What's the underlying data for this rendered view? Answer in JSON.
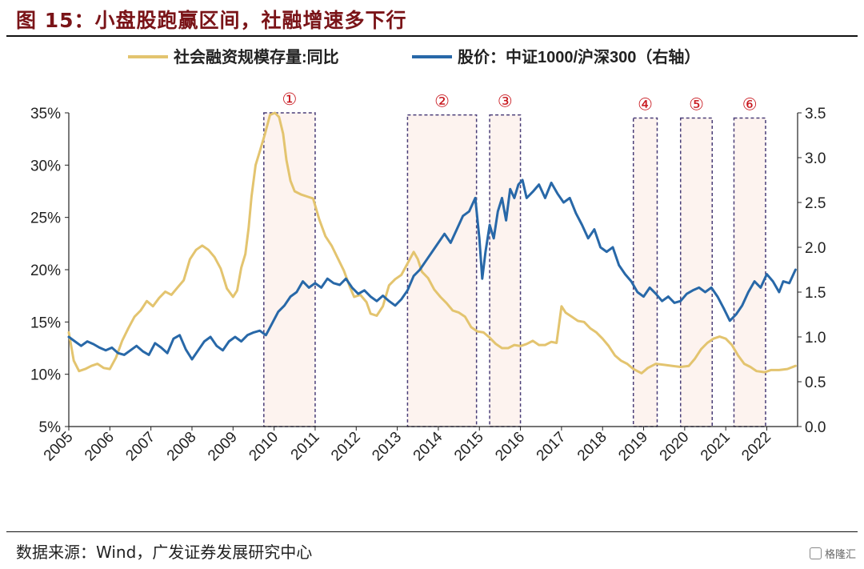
{
  "title": "图  15：小盘股跑赢区间，社融增速多下行",
  "source": "数据来源：Wind，广发证券发展研究中心",
  "logo_text": "格隆汇",
  "chart_data": {
    "type": "line",
    "legend_placement": "top",
    "x_range": [
      2005.0,
      2022.75
    ],
    "x_ticks": [
      2005,
      2006,
      2007,
      2008,
      2009,
      2010,
      2011,
      2012,
      2013,
      2014,
      2015,
      2016,
      2017,
      2018,
      2019,
      2020,
      2021,
      2022
    ],
    "y_left": {
      "range": [
        5,
        35
      ],
      "ticks": [
        "5%",
        "10%",
        "15%",
        "20%",
        "25%",
        "30%",
        "35%"
      ]
    },
    "y_right": {
      "range": [
        0,
        3.5
      ],
      "ticks": [
        "0.0",
        "0.5",
        "1.0",
        "1.5",
        "2.0",
        "2.5",
        "3.0",
        "3.5"
      ]
    },
    "grid": false,
    "series": [
      {
        "name": "社会融资规模存量:同比",
        "axis": "left",
        "color": "#E3C46F",
        "points": [
          [
            2005.0,
            14.0
          ],
          [
            2005.12,
            11.3
          ],
          [
            2005.25,
            10.3
          ],
          [
            2005.4,
            10.5
          ],
          [
            2005.55,
            10.8
          ],
          [
            2005.7,
            11.0
          ],
          [
            2005.85,
            10.6
          ],
          [
            2006.0,
            10.5
          ],
          [
            2006.15,
            11.6
          ],
          [
            2006.3,
            13.2
          ],
          [
            2006.45,
            14.4
          ],
          [
            2006.6,
            15.5
          ],
          [
            2006.75,
            16.1
          ],
          [
            2006.9,
            17.0
          ],
          [
            2007.05,
            16.5
          ],
          [
            2007.2,
            17.3
          ],
          [
            2007.35,
            17.9
          ],
          [
            2007.5,
            17.6
          ],
          [
            2007.65,
            18.3
          ],
          [
            2007.8,
            19.0
          ],
          [
            2007.95,
            21.0
          ],
          [
            2008.1,
            21.9
          ],
          [
            2008.25,
            22.3
          ],
          [
            2008.4,
            21.9
          ],
          [
            2008.55,
            21.2
          ],
          [
            2008.7,
            20.1
          ],
          [
            2008.85,
            18.2
          ],
          [
            2009.0,
            17.4
          ],
          [
            2009.1,
            18.0
          ],
          [
            2009.2,
            20.2
          ],
          [
            2009.3,
            21.5
          ],
          [
            2009.38,
            24.0
          ],
          [
            2009.45,
            27.0
          ],
          [
            2009.55,
            30.0
          ],
          [
            2009.65,
            31.3
          ],
          [
            2009.78,
            33.0
          ],
          [
            2009.9,
            34.8
          ],
          [
            2010.02,
            35.0
          ],
          [
            2010.12,
            34.6
          ],
          [
            2010.22,
            33.0
          ],
          [
            2010.3,
            30.5
          ],
          [
            2010.4,
            28.5
          ],
          [
            2010.5,
            27.5
          ],
          [
            2010.65,
            27.2
          ],
          [
            2010.8,
            27.0
          ],
          [
            2010.95,
            26.8
          ],
          [
            2011.1,
            24.8
          ],
          [
            2011.25,
            23.2
          ],
          [
            2011.4,
            22.3
          ],
          [
            2011.55,
            21.1
          ],
          [
            2011.7,
            19.9
          ],
          [
            2011.85,
            18.3
          ],
          [
            2011.95,
            17.4
          ],
          [
            2012.1,
            17.6
          ],
          [
            2012.25,
            16.9
          ],
          [
            2012.35,
            15.8
          ],
          [
            2012.5,
            15.6
          ],
          [
            2012.65,
            16.5
          ],
          [
            2012.8,
            18.5
          ],
          [
            2012.95,
            19.1
          ],
          [
            2013.1,
            19.5
          ],
          [
            2013.25,
            20.6
          ],
          [
            2013.4,
            21.7
          ],
          [
            2013.5,
            21.0
          ],
          [
            2013.6,
            19.8
          ],
          [
            2013.75,
            19.2
          ],
          [
            2013.9,
            18.1
          ],
          [
            2014.05,
            17.4
          ],
          [
            2014.2,
            16.8
          ],
          [
            2014.35,
            16.1
          ],
          [
            2014.5,
            15.9
          ],
          [
            2014.65,
            15.5
          ],
          [
            2014.8,
            14.5
          ],
          [
            2014.95,
            14.1
          ],
          [
            2015.1,
            14.0
          ],
          [
            2015.25,
            13.5
          ],
          [
            2015.4,
            12.9
          ],
          [
            2015.55,
            12.5
          ],
          [
            2015.7,
            12.5
          ],
          [
            2015.85,
            12.8
          ],
          [
            2016.0,
            12.7
          ],
          [
            2016.15,
            12.9
          ],
          [
            2016.3,
            13.2
          ],
          [
            2016.45,
            12.8
          ],
          [
            2016.6,
            12.8
          ],
          [
            2016.75,
            13.1
          ],
          [
            2016.88,
            13.0
          ],
          [
            2017.0,
            16.5
          ],
          [
            2017.1,
            15.9
          ],
          [
            2017.25,
            15.5
          ],
          [
            2017.4,
            15.1
          ],
          [
            2017.55,
            15.0
          ],
          [
            2017.7,
            14.4
          ],
          [
            2017.85,
            14.0
          ],
          [
            2018.0,
            13.4
          ],
          [
            2018.15,
            12.7
          ],
          [
            2018.3,
            11.8
          ],
          [
            2018.45,
            11.3
          ],
          [
            2018.6,
            11.0
          ],
          [
            2018.75,
            10.5
          ],
          [
            2018.95,
            10.1
          ],
          [
            2019.1,
            10.6
          ],
          [
            2019.3,
            11.0
          ],
          [
            2019.5,
            10.9
          ],
          [
            2019.7,
            10.8
          ],
          [
            2019.9,
            10.7
          ],
          [
            2020.1,
            10.8
          ],
          [
            2020.25,
            11.5
          ],
          [
            2020.4,
            12.4
          ],
          [
            2020.55,
            13.0
          ],
          [
            2020.7,
            13.4
          ],
          [
            2020.85,
            13.6
          ],
          [
            2021.0,
            13.4
          ],
          [
            2021.15,
            12.8
          ],
          [
            2021.3,
            11.8
          ],
          [
            2021.45,
            11.0
          ],
          [
            2021.6,
            10.7
          ],
          [
            2021.75,
            10.3
          ],
          [
            2021.95,
            10.2
          ],
          [
            2022.1,
            10.4
          ],
          [
            2022.3,
            10.4
          ],
          [
            2022.5,
            10.5
          ],
          [
            2022.7,
            10.8
          ]
        ]
      },
      {
        "name": "股价：中证1000/沪深300（右轴）",
        "axis": "right",
        "color": "#2868A8",
        "points": [
          [
            2005.0,
            1.0
          ],
          [
            2005.15,
            0.95
          ],
          [
            2005.3,
            0.9
          ],
          [
            2005.45,
            0.95
          ],
          [
            2005.6,
            0.92
          ],
          [
            2005.75,
            0.88
          ],
          [
            2005.9,
            0.85
          ],
          [
            2006.05,
            0.88
          ],
          [
            2006.2,
            0.82
          ],
          [
            2006.35,
            0.8
          ],
          [
            2006.5,
            0.85
          ],
          [
            2006.65,
            0.9
          ],
          [
            2006.8,
            0.84
          ],
          [
            2006.95,
            0.8
          ],
          [
            2007.1,
            0.93
          ],
          [
            2007.25,
            0.88
          ],
          [
            2007.4,
            0.82
          ],
          [
            2007.55,
            0.98
          ],
          [
            2007.7,
            1.02
          ],
          [
            2007.85,
            0.86
          ],
          [
            2008.0,
            0.75
          ],
          [
            2008.15,
            0.85
          ],
          [
            2008.3,
            0.95
          ],
          [
            2008.45,
            1.0
          ],
          [
            2008.6,
            0.9
          ],
          [
            2008.75,
            0.85
          ],
          [
            2008.9,
            0.95
          ],
          [
            2009.05,
            1.0
          ],
          [
            2009.2,
            0.95
          ],
          [
            2009.35,
            1.02
          ],
          [
            2009.5,
            1.05
          ],
          [
            2009.65,
            1.07
          ],
          [
            2009.8,
            1.02
          ],
          [
            2009.95,
            1.15
          ],
          [
            2010.1,
            1.28
          ],
          [
            2010.25,
            1.35
          ],
          [
            2010.4,
            1.45
          ],
          [
            2010.55,
            1.5
          ],
          [
            2010.7,
            1.62
          ],
          [
            2010.85,
            1.55
          ],
          [
            2011.0,
            1.6
          ],
          [
            2011.15,
            1.55
          ],
          [
            2011.3,
            1.65
          ],
          [
            2011.45,
            1.6
          ],
          [
            2011.6,
            1.58
          ],
          [
            2011.75,
            1.65
          ],
          [
            2011.9,
            1.55
          ],
          [
            2012.05,
            1.48
          ],
          [
            2012.2,
            1.52
          ],
          [
            2012.35,
            1.45
          ],
          [
            2012.5,
            1.4
          ],
          [
            2012.65,
            1.46
          ],
          [
            2012.8,
            1.4
          ],
          [
            2012.95,
            1.35
          ],
          [
            2013.1,
            1.42
          ],
          [
            2013.25,
            1.52
          ],
          [
            2013.4,
            1.68
          ],
          [
            2013.55,
            1.75
          ],
          [
            2013.7,
            1.85
          ],
          [
            2013.85,
            1.95
          ],
          [
            2014.0,
            2.05
          ],
          [
            2014.15,
            2.15
          ],
          [
            2014.3,
            2.05
          ],
          [
            2014.45,
            2.2
          ],
          [
            2014.6,
            2.35
          ],
          [
            2014.75,
            2.4
          ],
          [
            2014.9,
            2.55
          ],
          [
            2015.0,
            2.1
          ],
          [
            2015.07,
            1.65
          ],
          [
            2015.15,
            1.95
          ],
          [
            2015.25,
            2.25
          ],
          [
            2015.35,
            2.1
          ],
          [
            2015.45,
            2.4
          ],
          [
            2015.55,
            2.55
          ],
          [
            2015.65,
            2.3
          ],
          [
            2015.75,
            2.65
          ],
          [
            2015.85,
            2.55
          ],
          [
            2015.95,
            2.7
          ],
          [
            2016.05,
            2.75
          ],
          [
            2016.15,
            2.55
          ],
          [
            2016.3,
            2.62
          ],
          [
            2016.45,
            2.7
          ],
          [
            2016.6,
            2.55
          ],
          [
            2016.75,
            2.72
          ],
          [
            2016.9,
            2.6
          ],
          [
            2017.05,
            2.5
          ],
          [
            2017.2,
            2.55
          ],
          [
            2017.35,
            2.38
          ],
          [
            2017.5,
            2.25
          ],
          [
            2017.65,
            2.1
          ],
          [
            2017.8,
            2.2
          ],
          [
            2017.95,
            2.0
          ],
          [
            2018.1,
            1.95
          ],
          [
            2018.25,
            2.0
          ],
          [
            2018.4,
            1.8
          ],
          [
            2018.55,
            1.7
          ],
          [
            2018.7,
            1.62
          ],
          [
            2018.85,
            1.5
          ],
          [
            2019.0,
            1.45
          ],
          [
            2019.15,
            1.55
          ],
          [
            2019.3,
            1.48
          ],
          [
            2019.45,
            1.4
          ],
          [
            2019.6,
            1.45
          ],
          [
            2019.75,
            1.38
          ],
          [
            2019.9,
            1.4
          ],
          [
            2020.05,
            1.48
          ],
          [
            2020.2,
            1.52
          ],
          [
            2020.35,
            1.55
          ],
          [
            2020.5,
            1.5
          ],
          [
            2020.65,
            1.55
          ],
          [
            2020.8,
            1.45
          ],
          [
            2020.95,
            1.32
          ],
          [
            2021.1,
            1.18
          ],
          [
            2021.25,
            1.25
          ],
          [
            2021.4,
            1.35
          ],
          [
            2021.55,
            1.5
          ],
          [
            2021.7,
            1.62
          ],
          [
            2021.85,
            1.55
          ],
          [
            2022.0,
            1.7
          ],
          [
            2022.15,
            1.62
          ],
          [
            2022.3,
            1.5
          ],
          [
            2022.4,
            1.62
          ],
          [
            2022.55,
            1.6
          ],
          [
            2022.7,
            1.75
          ]
        ]
      }
    ],
    "regions": [
      {
        "label": "①",
        "x0": 2009.75,
        "x1": 2011.0,
        "top": 35.0
      },
      {
        "label": "②",
        "x0": 2013.25,
        "x1": 2014.93,
        "top": 34.8
      },
      {
        "label": "③",
        "x0": 2015.25,
        "x1": 2016.0,
        "top": 34.8
      },
      {
        "label": "④",
        "x0": 2018.75,
        "x1": 2019.33,
        "top": 34.5
      },
      {
        "label": "⑤",
        "x0": 2019.9,
        "x1": 2020.67,
        "top": 34.5
      },
      {
        "label": "⑥",
        "x0": 2021.2,
        "x1": 2021.97,
        "top": 34.5
      }
    ]
  }
}
